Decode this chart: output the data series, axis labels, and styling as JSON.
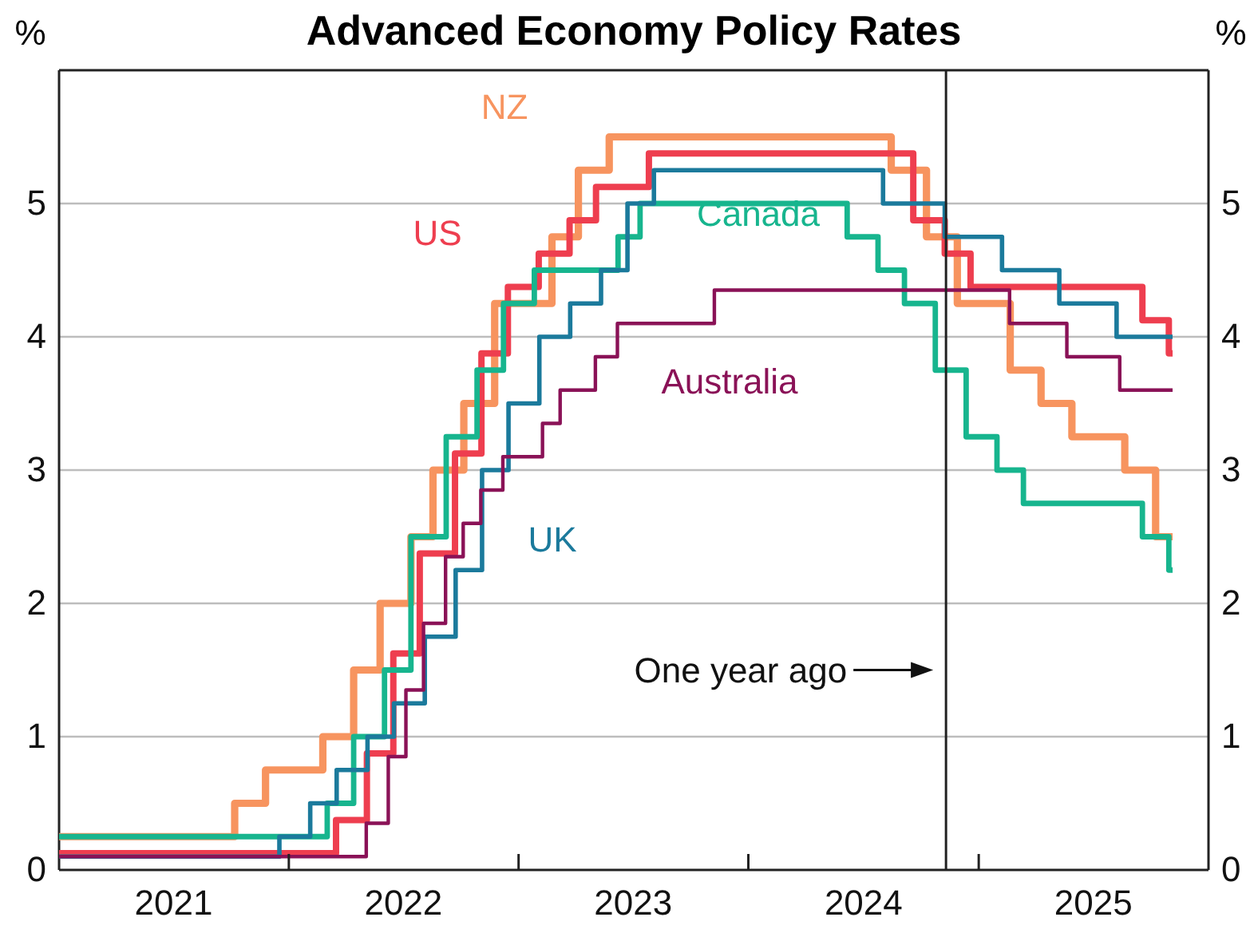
{
  "chart_data": {
    "type": "step",
    "title": "Advanced Economy Policy Rates",
    "ylabel": "%",
    "y2label": "%",
    "xlim": [
      "2021-01-01",
      "2026-01-01"
    ],
    "xticks": [
      {
        "value": "2021-07-02",
        "label": "2021"
      },
      {
        "value": "2022-01-01",
        "label": null
      },
      {
        "value": "2022-07-02",
        "label": "2022"
      },
      {
        "value": "2023-01-01",
        "label": null
      },
      {
        "value": "2023-07-02",
        "label": "2023"
      },
      {
        "value": "2024-01-01",
        "label": null
      },
      {
        "value": "2024-07-02",
        "label": "2024"
      },
      {
        "value": "2025-01-01",
        "label": null
      },
      {
        "value": "2025-07-02",
        "label": "2025"
      }
    ],
    "ylim": [
      0,
      6
    ],
    "yticks": [
      0,
      1,
      2,
      3,
      4,
      5
    ],
    "y2lim": [
      0,
      6
    ],
    "y2ticks": [
      0,
      1,
      2,
      3,
      4,
      5
    ],
    "grid": "y",
    "ref_lines": [
      {
        "axis": "x",
        "value": "2024-11-10",
        "label": "One year ago",
        "color": "#222222"
      }
    ],
    "series": [
      {
        "name": "NZ",
        "color": "#f7945f",
        "x": [
          "2021-01-01",
          "2021-10-07",
          "2021-11-25",
          "2022-02-24",
          "2022-04-14",
          "2022-05-26",
          "2022-07-14",
          "2022-08-18",
          "2022-10-06",
          "2022-11-24",
          "2023-02-23",
          "2023-04-06",
          "2023-05-25",
          "2024-08-15",
          "2024-10-10",
          "2024-11-28",
          "2025-02-20",
          "2025-04-10",
          "2025-05-29",
          "2025-08-21",
          "2025-10-09",
          "2025-11-05"
        ],
        "values": [
          0.25,
          0.5,
          0.75,
          1.0,
          1.5,
          2.0,
          2.5,
          3.0,
          3.5,
          4.25,
          4.75,
          5.25,
          5.5,
          5.25,
          4.75,
          4.25,
          3.75,
          3.5,
          3.25,
          3.0,
          2.5,
          2.5
        ]
      },
      {
        "name": "US",
        "color": "#ee3e4f",
        "x": [
          "2021-01-01",
          "2022-03-17",
          "2022-05-05",
          "2022-06-16",
          "2022-07-28",
          "2022-09-22",
          "2022-11-03",
          "2022-12-15",
          "2023-02-02",
          "2023-03-23",
          "2023-05-04",
          "2023-07-27",
          "2024-09-19",
          "2024-11-08",
          "2024-12-19",
          "2025-09-18",
          "2025-10-30",
          "2025-11-05"
        ],
        "values": [
          0.125,
          0.375,
          0.875,
          1.625,
          2.375,
          3.125,
          3.875,
          4.375,
          4.625,
          4.875,
          5.125,
          5.375,
          4.875,
          4.625,
          4.375,
          4.125,
          3.875,
          3.875
        ]
      },
      {
        "name": "Canada",
        "color": "#17b58e",
        "x": [
          "2021-01-01",
          "2022-03-03",
          "2022-04-14",
          "2022-06-02",
          "2022-07-14",
          "2022-09-08",
          "2022-10-27",
          "2022-12-08",
          "2023-01-26",
          "2023-06-08",
          "2023-07-13",
          "2024-06-06",
          "2024-07-25",
          "2024-09-05",
          "2024-10-24",
          "2024-12-12",
          "2025-01-30",
          "2025-03-13",
          "2025-09-18",
          "2025-10-30",
          "2025-11-05"
        ],
        "values": [
          0.25,
          0.5,
          1.0,
          1.5,
          2.5,
          3.25,
          3.75,
          4.25,
          4.5,
          4.75,
          5.0,
          4.75,
          4.5,
          4.25,
          3.75,
          3.25,
          3.0,
          2.75,
          2.5,
          2.25,
          2.25
        ]
      },
      {
        "name": "UK",
        "color": "#1b7a9c",
        "x": [
          "2021-01-01",
          "2021-12-17",
          "2022-02-04",
          "2022-03-18",
          "2022-05-06",
          "2022-06-17",
          "2022-08-05",
          "2022-09-23",
          "2022-11-04",
          "2022-12-16",
          "2023-02-03",
          "2023-03-24",
          "2023-05-12",
          "2023-06-23",
          "2023-08-04",
          "2024-08-02",
          "2024-11-08",
          "2025-02-07",
          "2025-05-09",
          "2025-08-08",
          "2025-11-05"
        ],
        "values": [
          0.1,
          0.25,
          0.5,
          0.75,
          1.0,
          1.25,
          1.75,
          2.25,
          3.0,
          3.5,
          4.0,
          4.25,
          4.5,
          5.0,
          5.25,
          5.0,
          4.75,
          4.5,
          4.25,
          4.0,
          4.0
        ]
      },
      {
        "name": "Australia",
        "color": "#8a1257",
        "x": [
          "2021-01-01",
          "2022-05-04",
          "2022-06-08",
          "2022-07-06",
          "2022-08-03",
          "2022-09-07",
          "2022-10-05",
          "2022-11-02",
          "2022-12-07",
          "2023-02-08",
          "2023-03-08",
          "2023-05-03",
          "2023-06-07",
          "2023-11-08",
          "2025-02-19",
          "2025-05-21",
          "2025-08-13",
          "2025-11-05"
        ],
        "values": [
          0.1,
          0.35,
          0.85,
          1.35,
          1.85,
          2.35,
          2.6,
          2.85,
          3.1,
          3.35,
          3.6,
          3.85,
          4.1,
          4.35,
          4.1,
          3.85,
          3.6,
          3.6
        ]
      }
    ]
  }
}
